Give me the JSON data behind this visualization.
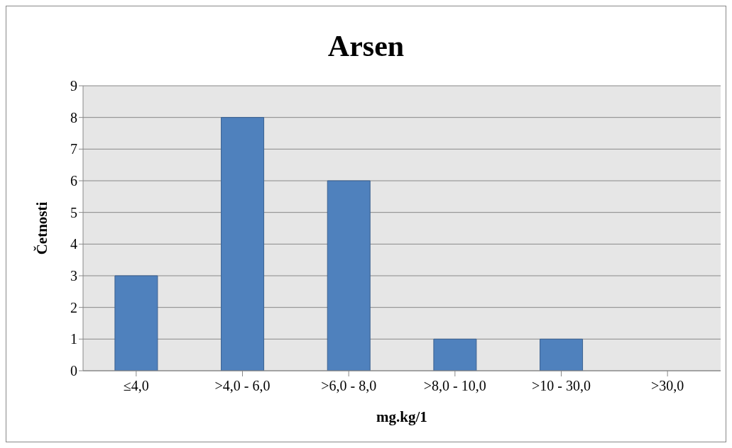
{
  "chart_data": {
    "type": "bar",
    "title": "Arsen",
    "xlabel": "mg.kg/1",
    "ylabel": "Četnosti",
    "categories": [
      "≤4,0",
      ">4,0 - 6,0",
      ">6,0 - 8,0",
      ">8,0 - 10,0",
      ">10 - 30,0",
      ">30,0"
    ],
    "values": [
      3,
      8,
      6,
      1,
      1,
      0
    ],
    "color": "#4f81bd",
    "ylim": [
      0,
      9
    ],
    "yticks": [
      0,
      1,
      2,
      3,
      4,
      5,
      6,
      7,
      8,
      9
    ],
    "grid": "y"
  }
}
